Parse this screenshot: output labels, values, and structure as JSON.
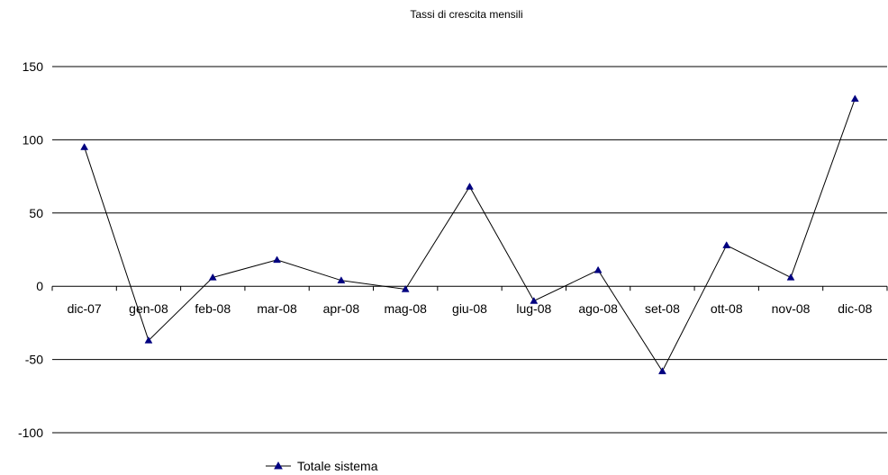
{
  "chart_data": {
    "type": "line",
    "title": "Tassi di crescita mensili",
    "categories": [
      "dic-07",
      "gen-08",
      "feb-08",
      "mar-08",
      "apr-08",
      "mag-08",
      "giu-08",
      "lug-08",
      "ago-08",
      "set-08",
      "ott-08",
      "nov-08",
      "dic-08"
    ],
    "series": [
      {
        "name": "Totale sistema",
        "values": [
          95,
          -37,
          6,
          18,
          4,
          -2,
          68,
          -10,
          11,
          -58,
          28,
          6,
          128
        ],
        "color": "#000080",
        "marker": "triangle"
      }
    ],
    "ylim": [
      -100,
      150
    ],
    "yticks": [
      -100,
      -50,
      0,
      50,
      100,
      150
    ],
    "grid": "horizontal",
    "legend": "bottom-center"
  }
}
